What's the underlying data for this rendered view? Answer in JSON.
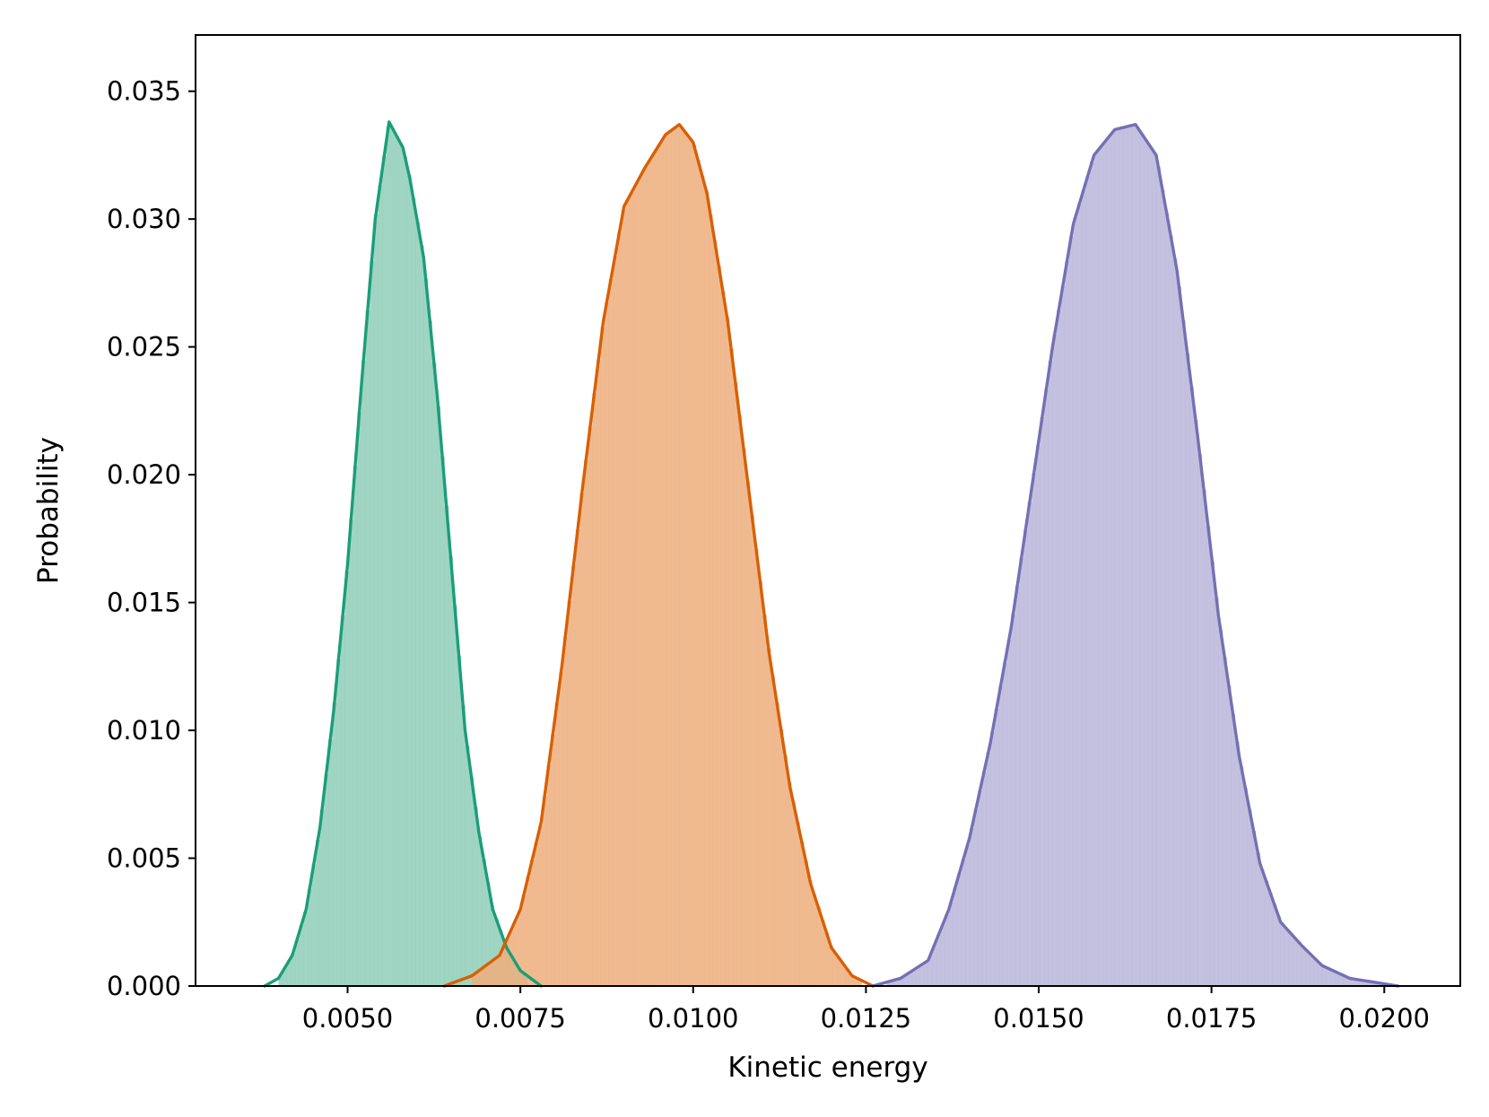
{
  "chart_data": {
    "type": "histogram",
    "title": "",
    "xlabel": "Kinetic energy",
    "ylabel": "Probability",
    "xlim": [
      0.0028,
      0.0211
    ],
    "ylim": [
      0.0,
      0.0372
    ],
    "xticks": [
      0.005,
      0.0075,
      0.01,
      0.0125,
      0.015,
      0.0175,
      0.02
    ],
    "xtick_labels": [
      "0.0050",
      "0.0075",
      "0.0100",
      "0.0125",
      "0.0150",
      "0.0175",
      "0.0200"
    ],
    "yticks": [
      0.0,
      0.005,
      0.01,
      0.015,
      0.02,
      0.025,
      0.03,
      0.035
    ],
    "ytick_labels": [
      "0.000",
      "0.005",
      "0.010",
      "0.015",
      "0.020",
      "0.025",
      "0.030",
      "0.035"
    ],
    "grid": false,
    "legend": "none",
    "series": [
      {
        "color": "#1b9e77",
        "fill_color": "#8fceb9",
        "hist_range": [
          0.004,
          0.0076
        ],
        "kde": [
          [
            0.0038,
            0.0
          ],
          [
            0.004,
            0.0003
          ],
          [
            0.0042,
            0.0012
          ],
          [
            0.0044,
            0.003
          ],
          [
            0.0046,
            0.0062
          ],
          [
            0.0048,
            0.0108
          ],
          [
            0.005,
            0.0165
          ],
          [
            0.0052,
            0.0235
          ],
          [
            0.0054,
            0.03
          ],
          [
            0.0056,
            0.0338
          ],
          [
            0.0058,
            0.0328
          ],
          [
            0.0059,
            0.0316
          ],
          [
            0.0061,
            0.0285
          ],
          [
            0.0063,
            0.023
          ],
          [
            0.0065,
            0.0165
          ],
          [
            0.0067,
            0.01
          ],
          [
            0.0069,
            0.006
          ],
          [
            0.0071,
            0.003
          ],
          [
            0.0073,
            0.0015
          ],
          [
            0.0075,
            0.0006
          ],
          [
            0.0078,
            0.0
          ]
        ]
      },
      {
        "color": "#d95f02",
        "fill_color": "#edae7d",
        "hist_range": [
          0.0068,
          0.0124
        ],
        "kde": [
          [
            0.0064,
            0.0
          ],
          [
            0.0068,
            0.0004
          ],
          [
            0.0072,
            0.0012
          ],
          [
            0.0075,
            0.003
          ],
          [
            0.0078,
            0.0064
          ],
          [
            0.0081,
            0.0125
          ],
          [
            0.0084,
            0.0195
          ],
          [
            0.0087,
            0.026
          ],
          [
            0.009,
            0.0305
          ],
          [
            0.0093,
            0.032
          ],
          [
            0.0096,
            0.0333
          ],
          [
            0.0098,
            0.0337
          ],
          [
            0.01,
            0.033
          ],
          [
            0.0102,
            0.031
          ],
          [
            0.0105,
            0.026
          ],
          [
            0.0108,
            0.0195
          ],
          [
            0.0111,
            0.013
          ],
          [
            0.0114,
            0.0078
          ],
          [
            0.0117,
            0.004
          ],
          [
            0.012,
            0.0015
          ],
          [
            0.0123,
            0.0004
          ],
          [
            0.0126,
            0.0
          ]
        ]
      },
      {
        "color": "#7570b3",
        "fill_color": "#b9b6d9",
        "hist_range": [
          0.0128,
          0.02
        ],
        "kde": [
          [
            0.0126,
            0.0
          ],
          [
            0.013,
            0.0003
          ],
          [
            0.0134,
            0.001
          ],
          [
            0.0137,
            0.003
          ],
          [
            0.014,
            0.0058
          ],
          [
            0.0143,
            0.0095
          ],
          [
            0.0146,
            0.014
          ],
          [
            0.0149,
            0.0195
          ],
          [
            0.0152,
            0.025
          ],
          [
            0.0155,
            0.0298
          ],
          [
            0.0158,
            0.0325
          ],
          [
            0.0161,
            0.0335
          ],
          [
            0.0164,
            0.0337
          ],
          [
            0.0167,
            0.0325
          ],
          [
            0.017,
            0.028
          ],
          [
            0.0173,
            0.0215
          ],
          [
            0.0176,
            0.0145
          ],
          [
            0.0179,
            0.009
          ],
          [
            0.0182,
            0.0048
          ],
          [
            0.0185,
            0.0025
          ],
          [
            0.0188,
            0.0016
          ],
          [
            0.0191,
            0.0008
          ],
          [
            0.0195,
            0.0003
          ],
          [
            0.0202,
            0.0
          ]
        ]
      }
    ]
  }
}
